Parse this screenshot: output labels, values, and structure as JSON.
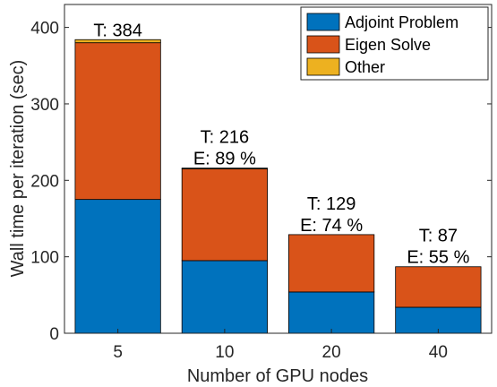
{
  "chart_data": {
    "type": "bar",
    "stacked": true,
    "categories": [
      "5",
      "10",
      "20",
      "40"
    ],
    "series": [
      {
        "name": "Adjoint Problem",
        "color": "#0072BD",
        "values": [
          175,
          95,
          54,
          34
        ]
      },
      {
        "name": "Eigen Solve",
        "color": "#D95319",
        "values": [
          205,
          120,
          75,
          53
        ]
      },
      {
        "name": "Other",
        "color": "#EDB120",
        "values": [
          4,
          1,
          0,
          0
        ]
      }
    ],
    "annotations": [
      [
        "T: 384"
      ],
      [
        "T: 216",
        "E: 89 %"
      ],
      [
        "T: 129",
        "E: 74 %"
      ],
      [
        "T: 87",
        "E: 55 %"
      ]
    ],
    "xlabel": "Number of GPU nodes",
    "ylabel": "Wall time per iteration (sec)",
    "ylim": [
      0,
      430
    ],
    "yticks": [
      0,
      100,
      200,
      300,
      400
    ],
    "grid": false,
    "legend": "top-right"
  }
}
